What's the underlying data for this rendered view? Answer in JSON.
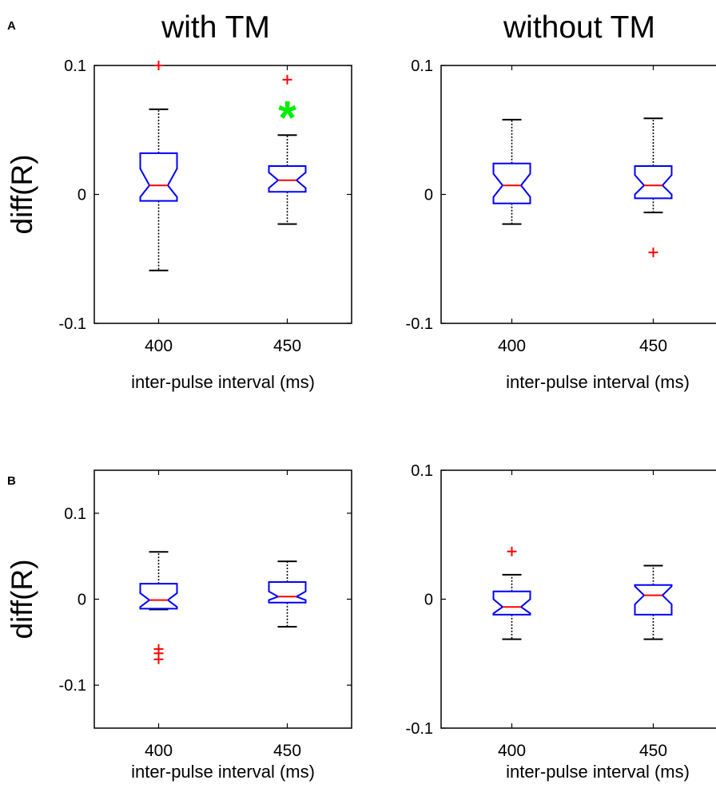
{
  "figure": {
    "panel_labels": [
      "A",
      "B"
    ],
    "column_titles": [
      "with TM",
      "without TM"
    ]
  },
  "colors": {
    "box": "#0000ff",
    "median": "#ff0000",
    "outlier": "#ff0000",
    "whisker": "#000000",
    "significance": "#00ee00"
  },
  "chart_data": [
    {
      "type": "box",
      "panel": "A",
      "title": "with TM",
      "xlabel": "inter-pulse interval (ms)",
      "ylabel": "diff(R)",
      "ylim": [
        -0.1,
        0.1
      ],
      "yticks": [
        -0.1,
        0,
        0.1
      ],
      "yticklabels": [
        "-0.1",
        "0",
        "0.1"
      ],
      "categories": [
        "400",
        "450"
      ],
      "boxes": [
        {
          "whisker_low": -0.059,
          "q1": -0.005,
          "notch_low": -0.002,
          "median": 0.007,
          "notch_high": 0.02,
          "q3": 0.032,
          "whisker_high": 0.066,
          "outliers": [
            0.1
          ]
        },
        {
          "whisker_low": -0.023,
          "q1": 0.002,
          "notch_low": 0.005,
          "median": 0.011,
          "notch_high": 0.017,
          "q3": 0.022,
          "whisker_high": 0.046,
          "outliers": [
            0.089
          ]
        }
      ],
      "significance_marker": {
        "category": "450",
        "symbol": "*",
        "y": 0.062
      }
    },
    {
      "type": "box",
      "panel": "A",
      "title": "without TM",
      "xlabel": "inter-pulse interval (ms)",
      "ylabel": "",
      "ylim": [
        -0.1,
        0.1
      ],
      "yticks": [
        -0.1,
        0,
        0.1
      ],
      "yticklabels": [
        "-0.1",
        "0",
        "0.1"
      ],
      "categories": [
        "400",
        "450"
      ],
      "boxes": [
        {
          "whisker_low": -0.023,
          "q1": -0.007,
          "notch_low": -0.002,
          "median": 0.007,
          "notch_high": 0.016,
          "q3": 0.024,
          "whisker_high": 0.058,
          "outliers": []
        },
        {
          "whisker_low": -0.014,
          "q1": -0.003,
          "notch_low": 0.0,
          "median": 0.007,
          "notch_high": 0.015,
          "q3": 0.022,
          "whisker_high": 0.059,
          "outliers": [
            -0.045
          ]
        }
      ]
    },
    {
      "type": "box",
      "panel": "B",
      "title": "",
      "xlabel": "inter-pulse interval (ms)",
      "ylabel": "diff(R)",
      "ylim": [
        -0.15,
        0.15
      ],
      "yticks": [
        -0.1,
        0,
        0.1
      ],
      "yticklabels": [
        "-0.1",
        "0",
        "0.1"
      ],
      "categories": [
        "400",
        "450"
      ],
      "boxes": [
        {
          "whisker_low": -0.012,
          "q1": -0.011,
          "notch_low": -0.009,
          "median": -0.001,
          "notch_high": 0.007,
          "q3": 0.018,
          "whisker_high": 0.055,
          "outliers": [
            -0.058,
            -0.063,
            -0.07
          ]
        },
        {
          "whisker_low": -0.032,
          "q1": -0.004,
          "notch_low": -0.001,
          "median": 0.003,
          "notch_high": 0.009,
          "q3": 0.02,
          "whisker_high": 0.044,
          "outliers": []
        }
      ]
    },
    {
      "type": "box",
      "panel": "B",
      "title": "",
      "xlabel": "inter-pulse interval (ms)",
      "ylabel": "",
      "ylim": [
        -0.1,
        0.1
      ],
      "yticks": [
        -0.1,
        0,
        0.1
      ],
      "yticklabels": [
        "-0.1",
        "0",
        "0.1"
      ],
      "categories": [
        "400",
        "450"
      ],
      "boxes": [
        {
          "whisker_low": -0.031,
          "q1": -0.012,
          "notch_low": -0.011,
          "median": -0.006,
          "notch_high": 0.0,
          "q3": 0.006,
          "whisker_high": 0.019,
          "outliers": [
            0.037
          ]
        },
        {
          "whisker_low": -0.031,
          "q1": -0.012,
          "notch_low": -0.004,
          "median": 0.003,
          "notch_high": 0.01,
          "q3": 0.011,
          "whisker_high": 0.026,
          "outliers": []
        }
      ]
    }
  ]
}
